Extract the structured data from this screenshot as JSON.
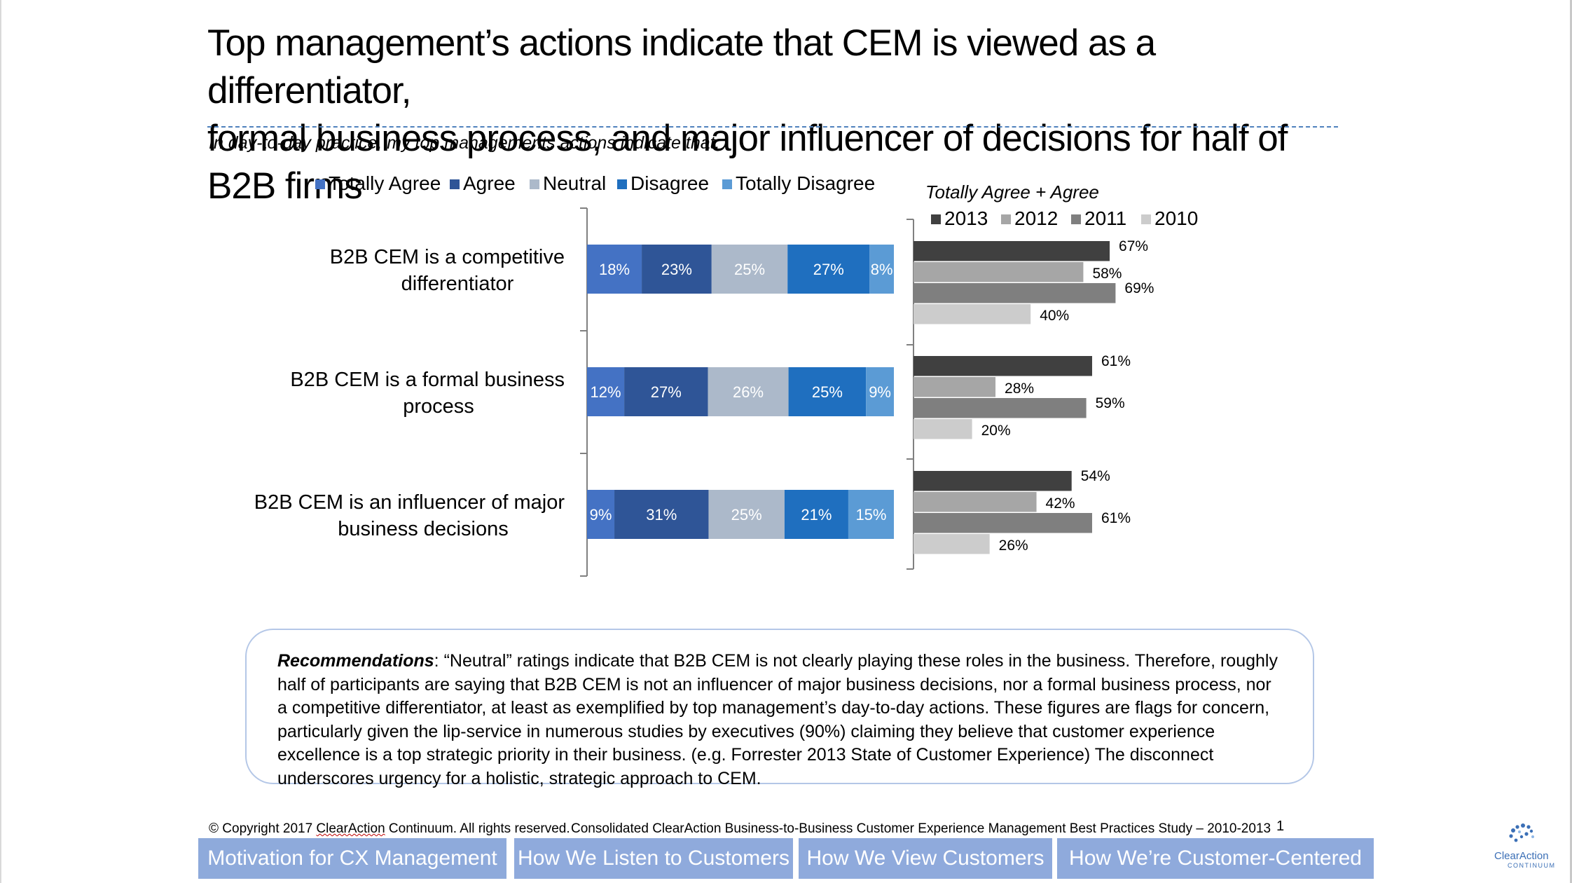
{
  "title_line1": "Top management’s actions indicate that CEM is viewed as a differentiator,",
  "title_line2": "formal business process, and major influencer of decisions for half of B2B firms",
  "subtitle": "In day-to-day practice, my top managements actions indicate that:",
  "colors": {
    "totally_agree": "#4472c4",
    "agree": "#2f5597",
    "neutral": "#acb9ca",
    "disagree": "#1f6fbf",
    "totally_disagree": "#5b9bd5",
    "y2013": "#404040",
    "y2012": "#a6a6a6",
    "y2011": "#7f7f7f",
    "y2010": "#cccccc"
  },
  "chart_data": [
    {
      "type": "bar",
      "orientation": "horizontal",
      "stacked": true,
      "percent": true,
      "categories": [
        "B2B CEM is a competitive differentiator",
        "B2B CEM is a formal business process",
        "B2B CEM is an influencer of major business decisions"
      ],
      "category_lines": [
        [
          "B2B CEM is a competitive",
          "differentiator"
        ],
        [
          "B2B CEM is a formal business",
          "process"
        ],
        [
          "B2B CEM is an influencer of major",
          "business decisions"
        ]
      ],
      "series": [
        {
          "name": "Totally Agree",
          "color": "#4472c4",
          "values": [
            18,
            12,
            9
          ]
        },
        {
          "name": "Agree",
          "color": "#2f5597",
          "values": [
            23,
            27,
            31
          ]
        },
        {
          "name": "Neutral",
          "color": "#acb9ca",
          "values": [
            25,
            26,
            25
          ]
        },
        {
          "name": "Disagree",
          "color": "#1f6fbf",
          "values": [
            27,
            25,
            21
          ]
        },
        {
          "name": "Totally Disagree",
          "color": "#5b9bd5",
          "values": [
            8,
            9,
            15
          ]
        }
      ],
      "legend": "top",
      "grid": false
    },
    {
      "type": "bar",
      "orientation": "horizontal",
      "title": "Totally Agree + Agree",
      "categories": [
        "B2B CEM is a competitive differentiator",
        "B2B CEM is a formal business process",
        "B2B CEM is an influencer of major business decisions"
      ],
      "series": [
        {
          "name": "2013",
          "color": "#404040",
          "values": [
            67,
            61,
            54
          ]
        },
        {
          "name": "2012",
          "color": "#a6a6a6",
          "values": [
            58,
            28,
            42
          ]
        },
        {
          "name": "2011",
          "color": "#7f7f7f",
          "values": [
            69,
            59,
            61
          ]
        },
        {
          "name": "2010",
          "color": "#cccccc",
          "values": [
            40,
            20,
            26
          ]
        }
      ],
      "legend": "top",
      "grid": false
    }
  ],
  "recommendations": {
    "label": "Recommendations",
    "text": ":  “Neutral” ratings indicate that B2B CEM is not clearly playing these roles in the business.  Therefore, roughly half of participants are saying that B2B CEM is not an influencer of major business decisions, nor a formal business process, nor a competitive differentiator, at least as exemplified by top management’s day-to-day actions.  These figures are flags for concern, particularly given the lip-service in numerous studies by executives (90%) claiming they believe that customer experience excellence is a top strategic priority in their business. (e.g. Forrester 2013 State of Customer Experience)  The disconnect underscores urgency for a holistic, strategic approach to CEM."
  },
  "footer": {
    "copyright_pre": "© Copyright 2017 ",
    "copyright_brand": "ClearAction",
    "copyright_post": " Continuum. All rights reserved.",
    "study": "Consolidated ClearAction Business-to-Business Customer Experience Management Best Practices Study – 2010-2013",
    "page_number": "1"
  },
  "nav": [
    "Motivation for CX Management",
    "How We Listen to Customers",
    "How We View Customers",
    "How We’re Customer-Centered"
  ],
  "logo": {
    "name": "ClearAction",
    "tagline": "CONTINUUM"
  }
}
